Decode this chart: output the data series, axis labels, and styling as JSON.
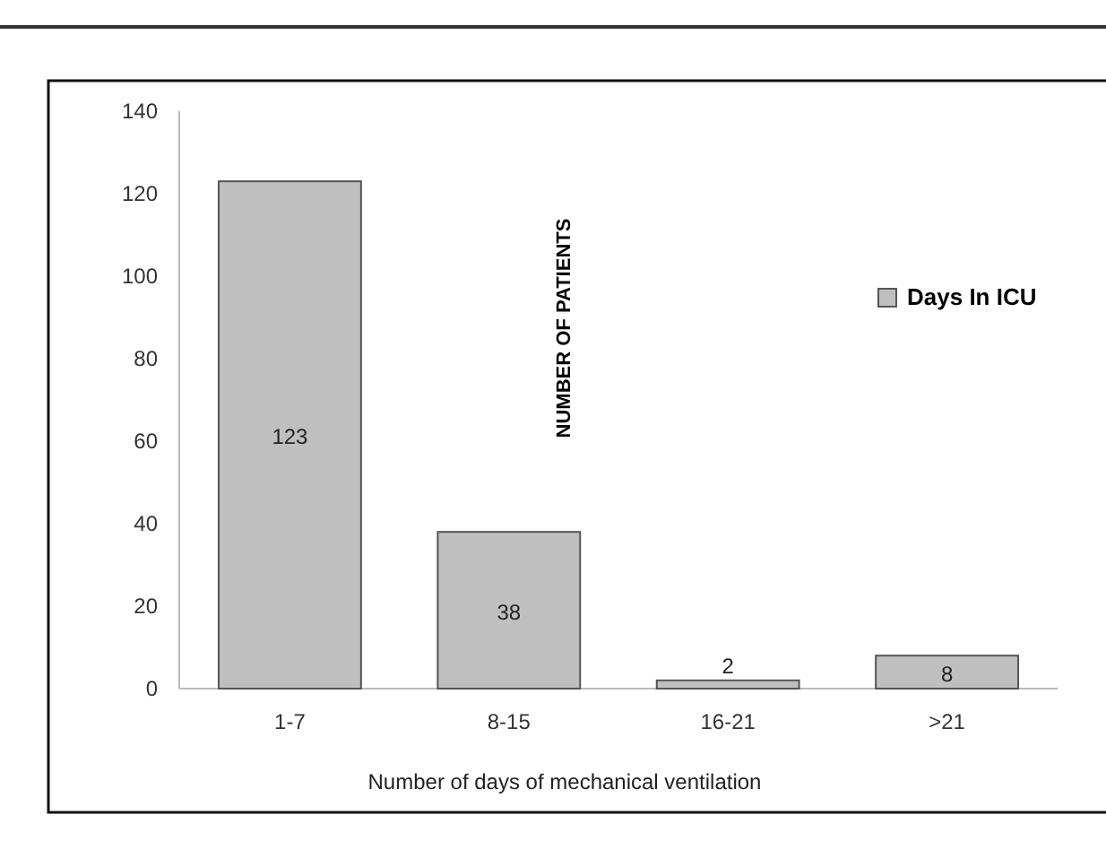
{
  "chart_data": {
    "type": "bar",
    "xlabel": "Number of days of mechanical ventilation",
    "ylabel": "NUMBER OF PATIENTS",
    "categories": [
      "1-7",
      "8-15",
      "16-21",
      ">21"
    ],
    "series": [
      {
        "name": "Days In ICU",
        "color": "#bfbfbf",
        "values": [
          123,
          38,
          2,
          8
        ]
      }
    ],
    "ylim": [
      0,
      140
    ],
    "yticks": [
      0,
      20,
      40,
      60,
      80,
      100,
      120,
      140
    ],
    "data_labels": true,
    "legend": "right",
    "grid": false
  }
}
